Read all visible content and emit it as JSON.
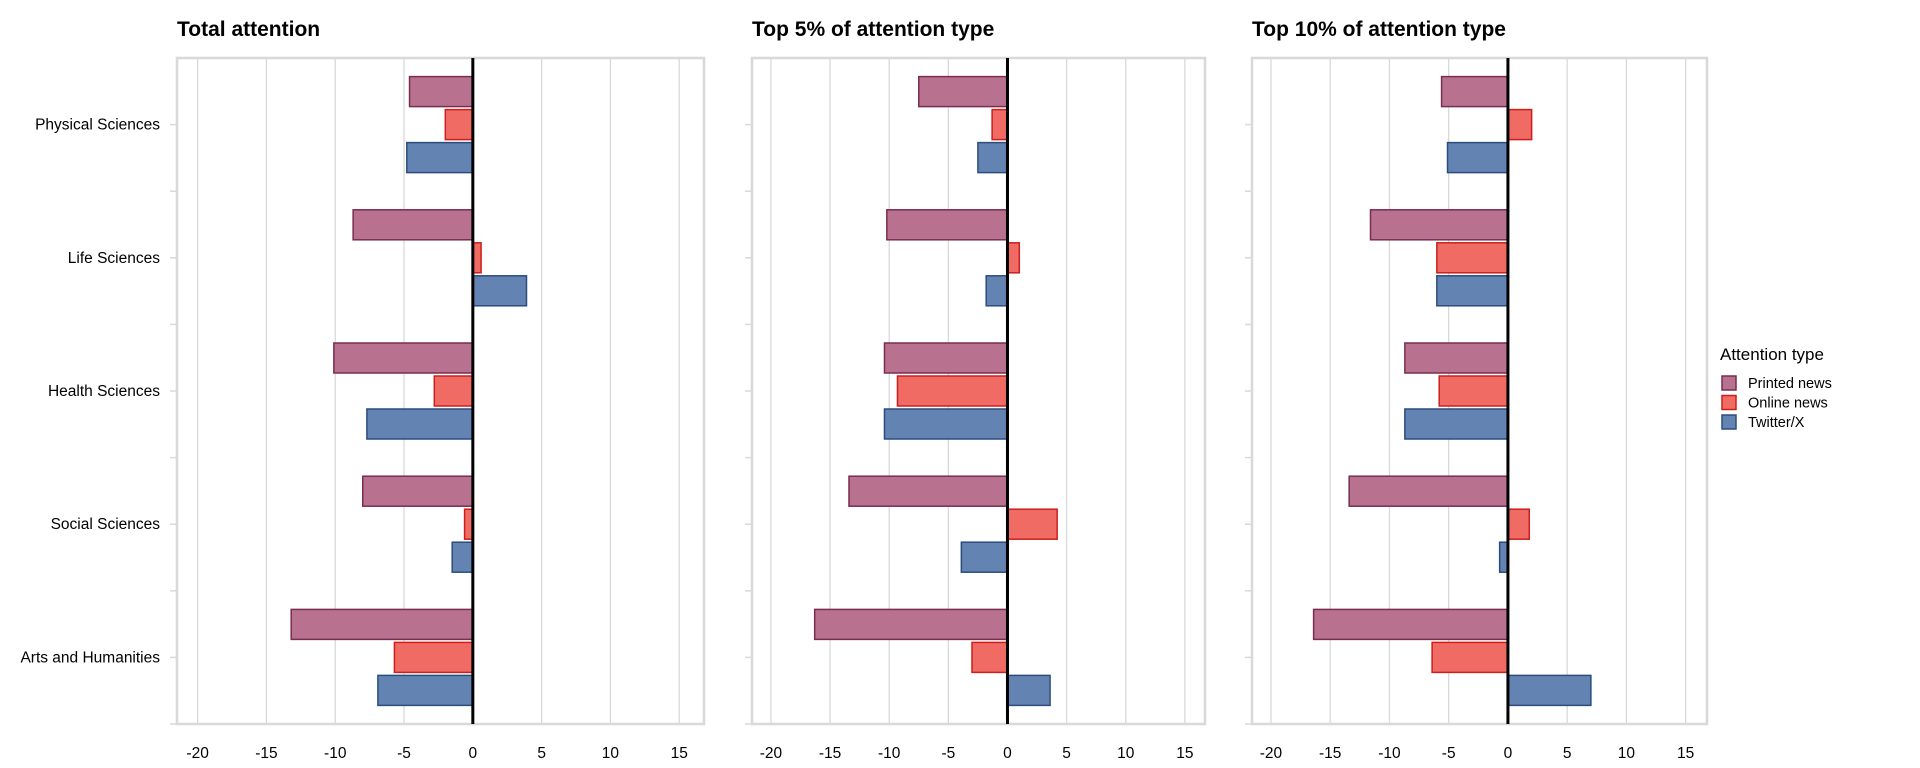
{
  "chart_data": [
    {
      "type": "bar",
      "orientation": "horizontal",
      "title": "Total attention",
      "categories": [
        "Physical Sciences",
        "Life Sciences",
        "Health Sciences",
        "Social Sciences",
        "Arts and Humanities"
      ],
      "series": [
        {
          "name": "Printed news",
          "values": [
            -4.6,
            -8.7,
            -10.1,
            -8.0,
            -13.2
          ]
        },
        {
          "name": "Online news",
          "values": [
            -2.0,
            0.6,
            -2.8,
            -0.6,
            -5.7
          ]
        },
        {
          "name": "Twitter/X",
          "values": [
            -4.8,
            3.9,
            -7.7,
            -1.5,
            -6.9
          ]
        }
      ],
      "xlim": [
        -21.5,
        16.8
      ],
      "xticks": [
        -20,
        -15,
        -10,
        -5,
        0,
        5,
        10,
        15
      ],
      "grid": true
    },
    {
      "type": "bar",
      "orientation": "horizontal",
      "title": "Top 5% of attention type",
      "categories": [
        "Physical Sciences",
        "Life Sciences",
        "Health Sciences",
        "Social Sciences",
        "Arts and Humanities"
      ],
      "series": [
        {
          "name": "Printed news",
          "values": [
            -7.5,
            -10.2,
            -10.4,
            -13.4,
            -16.3
          ]
        },
        {
          "name": "Online news",
          "values": [
            -1.3,
            1.0,
            -9.3,
            4.2,
            -3.0
          ]
        },
        {
          "name": "Twitter/X",
          "values": [
            -2.5,
            -1.8,
            -10.4,
            -3.9,
            3.6
          ]
        }
      ],
      "xlim": [
        -21.6,
        16.7
      ],
      "xticks": [
        -20,
        -15,
        -10,
        -5,
        0,
        5,
        10,
        15
      ],
      "grid": true
    },
    {
      "type": "bar",
      "orientation": "horizontal",
      "title": "Top 10% of attention type",
      "categories": [
        "Physical Sciences",
        "Life Sciences",
        "Health Sciences",
        "Social Sciences",
        "Arts and Humanities"
      ],
      "series": [
        {
          "name": "Printed news",
          "values": [
            -5.6,
            -11.6,
            -8.7,
            -13.4,
            -16.4
          ]
        },
        {
          "name": "Online news",
          "values": [
            2.0,
            -6.0,
            -5.8,
            1.8,
            -6.4
          ]
        },
        {
          "name": "Twitter/X",
          "values": [
            -5.1,
            -6.0,
            -8.7,
            -0.7,
            7.0
          ]
        }
      ],
      "xlim": [
        -21.6,
        16.8
      ],
      "xticks": [
        -20,
        -15,
        -10,
        -5,
        0,
        5,
        10,
        15
      ],
      "grid": true
    }
  ],
  "legend": {
    "title": "Attention type",
    "placement": "right",
    "items": [
      {
        "label": "Printed news",
        "fill": "#b8718f",
        "stroke": "#7a2d4e"
      },
      {
        "label": "Online news",
        "fill": "#ef6b64",
        "stroke": "#cc1f1c"
      },
      {
        "label": "Twitter/X",
        "fill": "#6384b2",
        "stroke": "#2c4d7c"
      }
    ]
  },
  "colors": {
    "series_fill": [
      "#b8718f",
      "#ef6b64",
      "#6384b2"
    ],
    "series_stroke": [
      "#7a2d4e",
      "#cc1f1c",
      "#2c4d7c"
    ],
    "grid": "#d9d9d9",
    "frame": "#d9d9d9",
    "zero_line": "#000000"
  }
}
